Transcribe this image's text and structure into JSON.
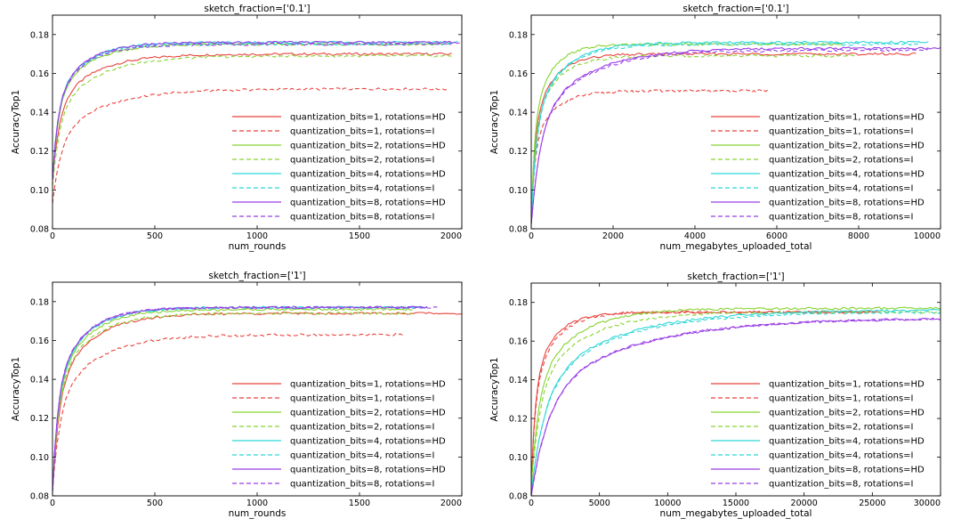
{
  "colors": {
    "q1": "#e8433c",
    "q2": "#86d430",
    "q4": "#2fd6d6",
    "q8": "#9a3ee6"
  },
  "legend_labels": [
    "quantization_bits=1, rotations=HD",
    "quantization_bits=1, rotations=I",
    "quantization_bits=2, rotations=HD",
    "quantization_bits=2, rotations=I",
    "quantization_bits=4, rotations=HD",
    "quantization_bits=4, rotations=I",
    "quantization_bits=8, rotations=HD",
    "quantization_bits=8, rotations=I"
  ],
  "chart_data": [
    {
      "type": "line",
      "title": "sketch_fraction=['0.1']",
      "xlabel": "num_rounds",
      "ylabel": "AccuracyTop1",
      "xlim": [
        0,
        2000
      ],
      "ylim": [
        0.08,
        0.19
      ],
      "xticks": [
        0,
        500,
        1000,
        1500,
        2000
      ],
      "xtick_labels": [
        "0",
        "500",
        "1000",
        "1500",
        "2000"
      ],
      "yticks": [
        0.08,
        0.1,
        0.12,
        0.14,
        0.16,
        0.18
      ],
      "ytick_labels": [
        "0.08",
        "0.10",
        "0.12",
        "0.14",
        "0.16",
        "0.18"
      ],
      "legend": "lower-right",
      "series": [
        {
          "name": "quantization_bits=1, rotations=HD",
          "color": "q1",
          "dash": false,
          "xmax": 1950,
          "start": 0.105,
          "end": 0.17,
          "k": 180
        },
        {
          "name": "quantization_bits=1, rotations=I",
          "color": "q1",
          "dash": true,
          "xmax": 1930,
          "start": 0.093,
          "end": 0.152,
          "k": 230
        },
        {
          "name": "quantization_bits=2, rotations=HD",
          "color": "q2",
          "dash": false,
          "xmax": 1950,
          "start": 0.105,
          "end": 0.175,
          "k": 150
        },
        {
          "name": "quantization_bits=2, rotations=I",
          "color": "q2",
          "dash": true,
          "xmax": 1950,
          "start": 0.102,
          "end": 0.169,
          "k": 200
        },
        {
          "name": "quantization_bits=4, rotations=HD",
          "color": "q4",
          "dash": false,
          "xmax": 1980,
          "start": 0.105,
          "end": 0.176,
          "k": 140
        },
        {
          "name": "quantization_bits=4, rotations=I",
          "color": "q4",
          "dash": true,
          "xmax": 1950,
          "start": 0.105,
          "end": 0.175,
          "k": 140
        },
        {
          "name": "quantization_bits=8, rotations=HD",
          "color": "q8",
          "dash": false,
          "xmax": 1990,
          "start": 0.105,
          "end": 0.176,
          "k": 140
        },
        {
          "name": "quantization_bits=8, rotations=I",
          "color": "q8",
          "dash": true,
          "xmax": 1950,
          "start": 0.105,
          "end": 0.175,
          "k": 140
        }
      ]
    },
    {
      "type": "line",
      "title": "sketch_fraction=['0.1']",
      "xlabel": "num_megabytes_uploaded_total",
      "ylabel": "AccuracyTop1",
      "xlim": [
        0,
        10000
      ],
      "ylim": [
        0.08,
        0.19
      ],
      "xticks": [
        0,
        2000,
        4000,
        6000,
        8000,
        10000
      ],
      "xtick_labels": [
        "0",
        "2000",
        "4000",
        "6000",
        "8000",
        "10000"
      ],
      "yticks": [
        0.08,
        0.1,
        0.12,
        0.14,
        0.16,
        0.18
      ],
      "ytick_labels": [
        "0.08",
        "0.10",
        "0.12",
        "0.14",
        "0.16",
        "0.18"
      ],
      "legend": "lower-right",
      "series": [
        {
          "name": "quantization_bits=1, rotations=HD",
          "color": "q1",
          "dash": false,
          "xmax": 9400,
          "start": 0.085,
          "end": 0.17,
          "k": 500
        },
        {
          "name": "quantization_bits=1, rotations=I",
          "color": "q1",
          "dash": true,
          "xmax": 5800,
          "start": 0.085,
          "end": 0.151,
          "k": 500
        },
        {
          "name": "quantization_bits=2, rotations=HD",
          "color": "q2",
          "dash": false,
          "xmax": 7600,
          "start": 0.085,
          "end": 0.175,
          "k": 450
        },
        {
          "name": "quantization_bits=2, rotations=I",
          "color": "q2",
          "dash": true,
          "xmax": 7900,
          "start": 0.085,
          "end": 0.169,
          "k": 550
        },
        {
          "name": "quantization_bits=4, rotations=HD",
          "color": "q4",
          "dash": false,
          "xmax": 9700,
          "start": 0.085,
          "end": 0.176,
          "k": 700
        },
        {
          "name": "quantization_bits=4, rotations=I",
          "color": "q4",
          "dash": true,
          "xmax": 9500,
          "start": 0.085,
          "end": 0.175,
          "k": 700
        },
        {
          "name": "quantization_bits=8, rotations=HD",
          "color": "q8",
          "dash": false,
          "xmax": 10000,
          "start": 0.082,
          "end": 0.173,
          "k": 1200
        },
        {
          "name": "quantization_bits=8, rotations=I",
          "color": "q8",
          "dash": true,
          "xmax": 9700,
          "start": 0.082,
          "end": 0.172,
          "k": 1200
        }
      ]
    },
    {
      "type": "line",
      "title": "sketch_fraction=['1']",
      "xlabel": "num_rounds",
      "ylabel": "AccuracyTop1",
      "xlim": [
        0,
        2000
      ],
      "ylim": [
        0.08,
        0.19
      ],
      "xticks": [
        0,
        500,
        1000,
        1500,
        2000
      ],
      "xtick_labels": [
        "0",
        "500",
        "1000",
        "1500",
        "2000"
      ],
      "yticks": [
        0.08,
        0.1,
        0.12,
        0.14,
        0.16,
        0.18
      ],
      "ytick_labels": [
        "0.08",
        "0.10",
        "0.12",
        "0.14",
        "0.16",
        "0.18"
      ],
      "legend": "lower-right",
      "series": [
        {
          "name": "quantization_bits=1, rotations=HD",
          "color": "q1",
          "dash": false,
          "xmax": 2000,
          "start": 0.082,
          "end": 0.174,
          "k": 170
        },
        {
          "name": "quantization_bits=1, rotations=I",
          "color": "q1",
          "dash": true,
          "xmax": 1720,
          "start": 0.082,
          "end": 0.163,
          "k": 200
        },
        {
          "name": "quantization_bits=2, rotations=HD",
          "color": "q2",
          "dash": false,
          "xmax": 1760,
          "start": 0.082,
          "end": 0.176,
          "k": 150
        },
        {
          "name": "quantization_bits=2, rotations=I",
          "color": "q2",
          "dash": true,
          "xmax": 1760,
          "start": 0.082,
          "end": 0.174,
          "k": 160
        },
        {
          "name": "quantization_bits=4, rotations=HD",
          "color": "q4",
          "dash": false,
          "xmax": 1830,
          "start": 0.082,
          "end": 0.177,
          "k": 145
        },
        {
          "name": "quantization_bits=4, rotations=I",
          "color": "q4",
          "dash": true,
          "xmax": 1830,
          "start": 0.082,
          "end": 0.177,
          "k": 145
        },
        {
          "name": "quantization_bits=8, rotations=HD",
          "color": "q8",
          "dash": false,
          "xmax": 1830,
          "start": 0.082,
          "end": 0.177,
          "k": 140
        },
        {
          "name": "quantization_bits=8, rotations=I",
          "color": "q8",
          "dash": true,
          "xmax": 1880,
          "start": 0.082,
          "end": 0.177,
          "k": 140
        }
      ]
    },
    {
      "type": "line",
      "title": "sketch_fraction=['1']",
      "xlabel": "num_megabytes_uploaded_total",
      "ylabel": "AccuracyTop1",
      "xlim": [
        0,
        30000
      ],
      "ylim": [
        0.08,
        0.19
      ],
      "xticks": [
        0,
        5000,
        10000,
        15000,
        20000,
        25000,
        30000
      ],
      "xtick_labels": [
        "0",
        "5000",
        "10000",
        "15000",
        "20000",
        "25000",
        "30000"
      ],
      "yticks": [
        0.08,
        0.1,
        0.12,
        0.14,
        0.16,
        0.18
      ],
      "ytick_labels": [
        "0.08",
        "0.10",
        "0.12",
        "0.14",
        "0.16",
        "0.18"
      ],
      "legend": "lower-right",
      "series": [
        {
          "name": "quantization_bits=1, rotations=HD",
          "color": "q1",
          "dash": false,
          "xmax": 25600,
          "start": 0.085,
          "end": 0.175,
          "k": 1500
        },
        {
          "name": "quantization_bits=1, rotations=I",
          "color": "q1",
          "dash": true,
          "xmax": 25200,
          "start": 0.085,
          "end": 0.175,
          "k": 1700
        },
        {
          "name": "quantization_bits=2, rotations=HD",
          "color": "q2",
          "dash": false,
          "xmax": 30000,
          "start": 0.085,
          "end": 0.177,
          "k": 3000
        },
        {
          "name": "quantization_bits=2, rotations=I",
          "color": "q2",
          "dash": true,
          "xmax": 30000,
          "start": 0.085,
          "end": 0.175,
          "k": 3500
        },
        {
          "name": "quantization_bits=4, rotations=HD",
          "color": "q4",
          "dash": false,
          "xmax": 30000,
          "start": 0.082,
          "end": 0.176,
          "k": 5500
        },
        {
          "name": "quantization_bits=4, rotations=I",
          "color": "q4",
          "dash": true,
          "xmax": 30000,
          "start": 0.082,
          "end": 0.175,
          "k": 5500
        },
        {
          "name": "quantization_bits=8, rotations=HD",
          "color": "q8",
          "dash": false,
          "xmax": 30000,
          "start": 0.08,
          "end": 0.172,
          "k": 7000
        },
        {
          "name": "quantization_bits=8, rotations=I",
          "color": "q8",
          "dash": true,
          "xmax": 30000,
          "start": 0.08,
          "end": 0.172,
          "k": 7000
        }
      ]
    }
  ]
}
